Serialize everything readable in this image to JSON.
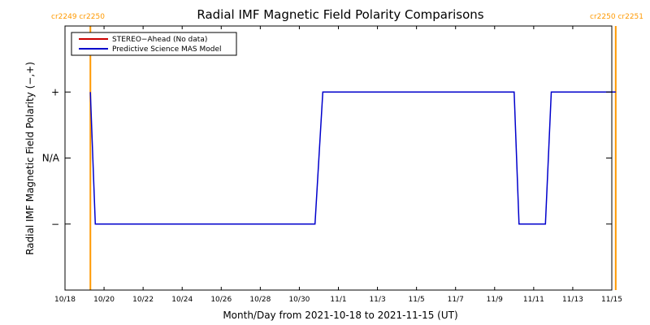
{
  "chart_data": {
    "type": "line",
    "title": "Radial IMF Magnetic Field Polarity Comparisons",
    "xlabel": "Month/Day from 2021-10-18 to 2021-11-15 (UT)",
    "ylabel": "Radial IMF Magnetic Field Polarity (−,+)",
    "x_range_days": [
      0,
      28
    ],
    "y_range": [
      -2,
      2
    ],
    "x_ticks": [
      {
        "day": 0,
        "label": "10/18"
      },
      {
        "day": 2,
        "label": "10/20"
      },
      {
        "day": 4,
        "label": "10/22"
      },
      {
        "day": 6,
        "label": "10/24"
      },
      {
        "day": 8,
        "label": "10/26"
      },
      {
        "day": 10,
        "label": "10/28"
      },
      {
        "day": 12,
        "label": "10/30"
      },
      {
        "day": 14,
        "label": "11/1"
      },
      {
        "day": 16,
        "label": "11/3"
      },
      {
        "day": 18,
        "label": "11/5"
      },
      {
        "day": 20,
        "label": "11/7"
      },
      {
        "day": 22,
        "label": "11/9"
      },
      {
        "day": 24,
        "label": "11/11"
      },
      {
        "day": 26,
        "label": "11/13"
      },
      {
        "day": 28,
        "label": "11/15"
      }
    ],
    "y_ticks": [
      {
        "value": 1,
        "label": "+"
      },
      {
        "value": 0,
        "label": "N/A"
      },
      {
        "value": -1,
        "label": "−"
      }
    ],
    "legend": {
      "placement": "top-left",
      "entries": [
        {
          "name": "STEREO−Ahead (No data)",
          "color": "#cc0000"
        },
        {
          "name": "Predictive Science MAS Model",
          "color": "#0000cc"
        }
      ]
    },
    "series": [
      {
        "name": "Predictive Science MAS Model",
        "color": "#0000cc",
        "x": [
          1.3,
          1.55,
          12.8,
          13.2,
          23.0,
          23.25,
          24.6,
          24.9,
          28.2
        ],
        "y": [
          1,
          -1,
          -1,
          1,
          1,
          -1,
          -1,
          1,
          1
        ]
      }
    ],
    "carrington_markers": [
      {
        "day": 1.3,
        "label": "cr2249 cr2250",
        "color": "#ff9900"
      },
      {
        "day": 28.2,
        "label": "cr2250 cr2251",
        "color": "#ff9900"
      }
    ]
  }
}
